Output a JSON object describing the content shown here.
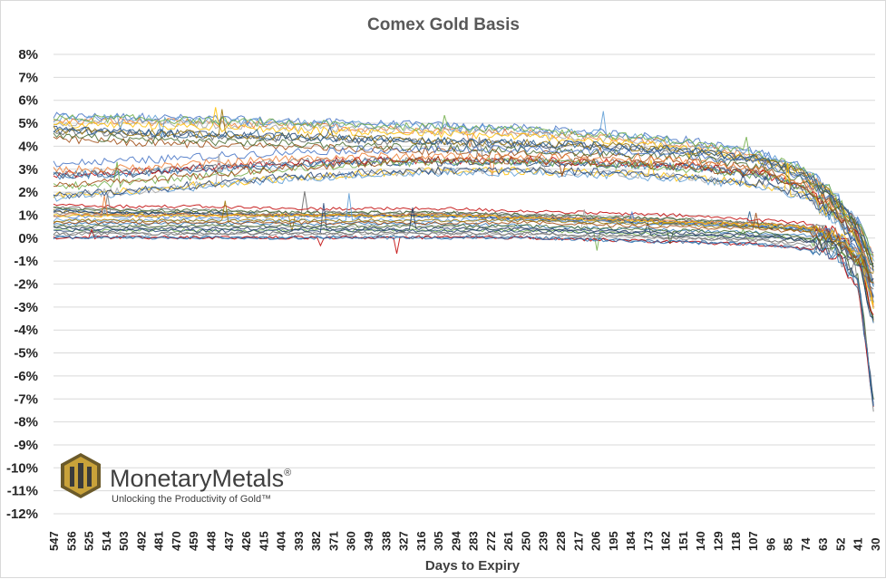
{
  "chart_data": {
    "type": "line",
    "title": "Comex Gold Basis",
    "xlabel": "Days to Expiry",
    "ylabel": "",
    "ylim": [
      -0.12,
      0.08
    ],
    "y_ticks": [
      "8%",
      "7%",
      "6%",
      "5%",
      "4%",
      "3%",
      "2%",
      "1%",
      "0%",
      "-1%",
      "-2%",
      "-3%",
      "-4%",
      "-5%",
      "-6%",
      "-7%",
      "-8%",
      "-9%",
      "-10%",
      "-11%",
      "-12%"
    ],
    "x_ticks": [
      "547",
      "536",
      "525",
      "514",
      "503",
      "492",
      "481",
      "470",
      "459",
      "448",
      "437",
      "426",
      "415",
      "404",
      "393",
      "382",
      "371",
      "360",
      "349",
      "338",
      "327",
      "316",
      "305",
      "294",
      "283",
      "272",
      "261",
      "250",
      "239",
      "228",
      "217",
      "206",
      "195",
      "184",
      "173",
      "162",
      "151",
      "140",
      "129",
      "118",
      "107",
      "96",
      "85",
      "74",
      "63",
      "52",
      "41",
      "30"
    ],
    "xlim": [
      547,
      30
    ],
    "grid": true,
    "legend": "none",
    "series_summary": "Dozens of overlapping contract series. One cluster starts near 5% at 547 days and declines to about 3.5% by 100 days; a second cluster starts near 1% and declines toward 0%; all series converge toward zero and become volatile below 60 days, reaching as low as -8% near 30 days.",
    "series": [
      {
        "x": [
          547,
          500,
          450,
          400,
          350,
          300,
          250,
          200,
          150,
          100,
          75,
          55,
          40,
          30
        ],
        "values": [
          0.052,
          0.052,
          0.051,
          0.05,
          0.049,
          0.048,
          0.047,
          0.045,
          0.042,
          0.036,
          0.03,
          0.018,
          0.005,
          -0.01
        ]
      },
      {
        "x": [
          547,
          500,
          450,
          400,
          350,
          300,
          250,
          200,
          150,
          100,
          75,
          55,
          40,
          30
        ],
        "values": [
          0.045,
          0.044,
          0.043,
          0.042,
          0.041,
          0.04,
          0.039,
          0.038,
          0.036,
          0.032,
          0.026,
          0.015,
          0.003,
          -0.015
        ]
      },
      {
        "x": [
          547,
          500,
          450,
          400,
          350,
          300,
          250,
          200,
          150,
          100,
          75,
          55,
          40,
          30
        ],
        "values": [
          0.03,
          0.031,
          0.033,
          0.035,
          0.036,
          0.036,
          0.036,
          0.035,
          0.034,
          0.03,
          0.024,
          0.012,
          0.0,
          -0.02
        ]
      },
      {
        "x": [
          547,
          500,
          450,
          400,
          350,
          300,
          250,
          200,
          150,
          100,
          75,
          55,
          40,
          30
        ],
        "values": [
          0.02,
          0.022,
          0.025,
          0.028,
          0.03,
          0.031,
          0.031,
          0.03,
          0.028,
          0.025,
          0.02,
          0.01,
          -0.002,
          -0.03
        ]
      },
      {
        "x": [
          547,
          500,
          450,
          400,
          350,
          300,
          250,
          200,
          150,
          100,
          75,
          55,
          40,
          30
        ],
        "values": [
          0.012,
          0.011,
          0.011,
          0.01,
          0.01,
          0.01,
          0.009,
          0.008,
          0.007,
          0.005,
          0.004,
          0.001,
          -0.01,
          -0.04
        ]
      },
      {
        "x": [
          547,
          500,
          450,
          400,
          350,
          300,
          250,
          200,
          150,
          100,
          75,
          55,
          40,
          30
        ],
        "values": [
          0.008,
          0.008,
          0.008,
          0.008,
          0.008,
          0.008,
          0.007,
          0.006,
          0.005,
          0.004,
          0.003,
          0.0,
          -0.008,
          -0.03
        ]
      },
      {
        "x": [
          547,
          500,
          450,
          400,
          350,
          300,
          250,
          200,
          150,
          100,
          75,
          55,
          40,
          30
        ],
        "values": [
          0.005,
          0.005,
          0.005,
          0.005,
          0.005,
          0.005,
          0.005,
          0.004,
          0.003,
          0.002,
          0.001,
          -0.002,
          -0.01,
          -0.02
        ]
      },
      {
        "x": [
          547,
          500,
          450,
          400,
          350,
          300,
          250,
          200,
          150,
          100,
          75,
          55,
          40,
          30
        ],
        "values": [
          0.003,
          0.003,
          0.003,
          0.003,
          0.003,
          0.003,
          0.003,
          0.002,
          0.001,
          0.0,
          -0.002,
          -0.005,
          -0.02,
          -0.08
        ]
      }
    ]
  },
  "colors": [
    "#4472c4",
    "#ed7d31",
    "#a5a5a5",
    "#ffc000",
    "#5b9bd5",
    "#70ad47",
    "#264478",
    "#9e480e",
    "#636363",
    "#997300",
    "#255e91",
    "#43682b",
    "#1f3864",
    "#c00000",
    "#7f7f7f",
    "#2e75b6"
  ],
  "logo": {
    "name": "MonetaryMetals",
    "trademark": "®",
    "tagline": "Unlocking the Productivity of Gold™"
  }
}
